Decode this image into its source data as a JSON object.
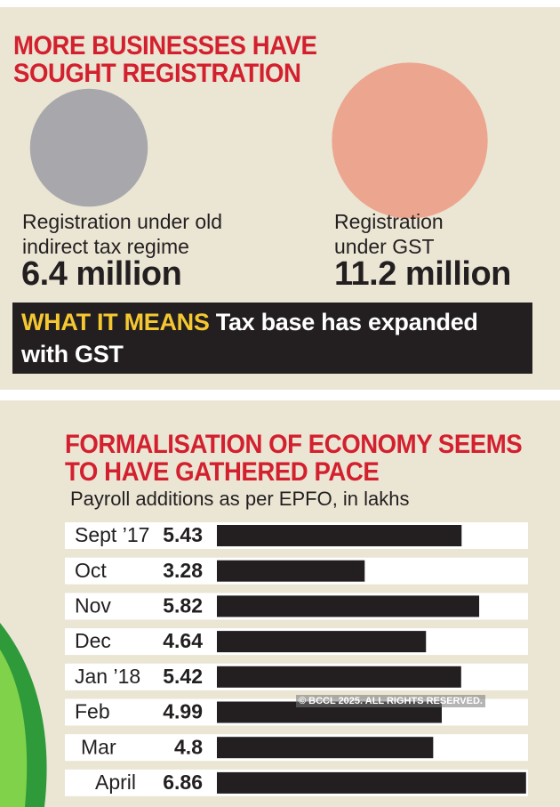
{
  "chart_data": [
    {
      "type": "bubble",
      "title": "MORE BUSINESSES HAVE SOUGHT REGISTRATION",
      "categories": [
        "Registration under old indirect tax regime",
        "Registration under GST"
      ],
      "values": [
        6.4,
        11.2
      ],
      "value_labels": [
        "6.4 million",
        "11.2 million"
      ],
      "colors": [
        "#a8a8ac",
        "#eca68f"
      ],
      "annotation": {
        "label": "WHAT IT MEANS",
        "text": "Tax base has expanded with GST"
      }
    },
    {
      "type": "bar",
      "title": "FORMALISATION OF ECONOMY SEEMS TO HAVE GATHERED PACE",
      "subtitle": "Payroll additions as per EPFO, in lakhs",
      "categories": [
        "Sept ’17",
        "Oct",
        "Nov",
        "Dec",
        "Jan ’18",
        "Feb",
        "Mar",
        "April"
      ],
      "values": [
        5.43,
        3.28,
        5.82,
        4.64,
        5.42,
        4.99,
        4.8,
        6.86
      ],
      "color": "#231f20",
      "watermark": "© BCCL 2025. ALL RIGHTS RESERVED."
    }
  ]
}
